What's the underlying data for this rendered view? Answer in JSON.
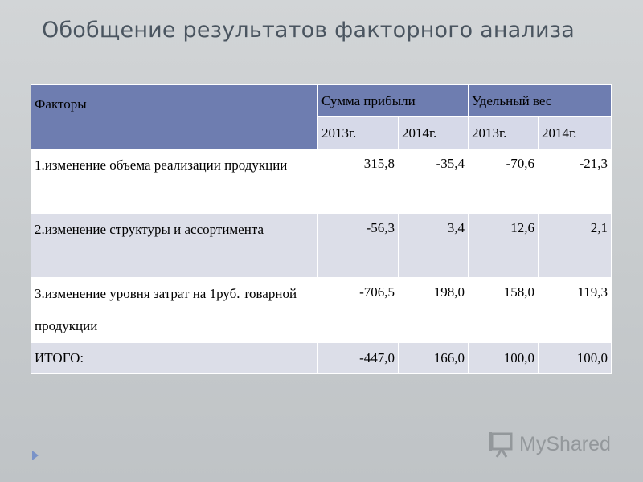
{
  "title": "Обобщение результатов факторного анализа",
  "table": {
    "header": {
      "factors": "Факторы",
      "profit": "Сумма прибыли",
      "weight": "Удельный вес",
      "years": [
        "2013г.",
        "2014г.",
        "2013г.",
        "2014г."
      ]
    },
    "rows": [
      {
        "label": "1.изменение объема реализации продукции",
        "values": [
          "315,8",
          "-35,4",
          "-70,6",
          "-21,3"
        ]
      },
      {
        "label": "2.изменение структуры и ассортимента",
        "values": [
          "-56,3",
          "3,4",
          "12,6",
          "2,1"
        ]
      },
      {
        "label": "3.изменение уровня затрат на 1руб. товарной продукции",
        "values": [
          "-706,5",
          "198,0",
          "158,0",
          "119,3"
        ]
      },
      {
        "label": "ИТОГО:",
        "values": [
          "-447,0",
          "166,0",
          "100,0",
          "100,0"
        ]
      }
    ]
  },
  "watermark": {
    "text": "MyShared",
    "icon": "presentation-board-icon"
  },
  "colors": {
    "header": "#6e7db0",
    "subheader": "#d6d9e8",
    "band": "#dcdee8",
    "background": "#c9ccce"
  }
}
